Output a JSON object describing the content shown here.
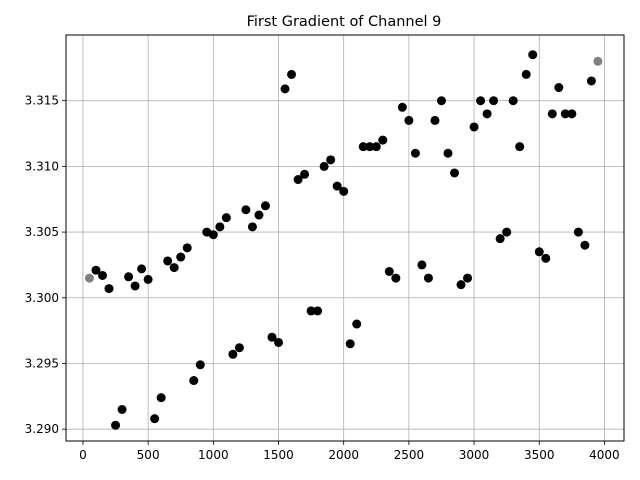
{
  "chart_data": {
    "type": "scatter",
    "title": "First Gradient of Channel 9",
    "xlabel": "",
    "ylabel": "",
    "xlim": [
      -130,
      4150
    ],
    "ylim": [
      3.2891,
      3.32
    ],
    "xticks": [
      0,
      500,
      1000,
      1500,
      2000,
      2500,
      3000,
      3500,
      4000
    ],
    "yticks": [
      3.29,
      3.295,
      3.3,
      3.305,
      3.31,
      3.315
    ],
    "xtick_labels": [
      "0",
      "500",
      "1000",
      "1500",
      "2000",
      "2500",
      "3000",
      "3500",
      "4000"
    ],
    "ytick_labels": [
      "3.290",
      "3.295",
      "3.300",
      "3.305",
      "3.310",
      "3.315"
    ],
    "grid": true,
    "colors": {
      "main": "#000000",
      "endpoint": "#808080",
      "grid": "#b0b0b0"
    },
    "series": [
      {
        "color": "#000000",
        "points": [
          [
            100,
            3.3021
          ],
          [
            150,
            3.3017
          ],
          [
            200,
            3.3007
          ],
          [
            250,
            3.2903
          ],
          [
            300,
            3.2915
          ],
          [
            350,
            3.3016
          ],
          [
            400,
            3.3009
          ],
          [
            450,
            3.3022
          ],
          [
            500,
            3.3014
          ],
          [
            550,
            3.2908
          ],
          [
            600,
            3.2924
          ],
          [
            650,
            3.3028
          ],
          [
            700,
            3.3023
          ],
          [
            750,
            3.3031
          ],
          [
            800,
            3.3038
          ],
          [
            850,
            3.2937
          ],
          [
            900,
            3.2949
          ],
          [
            950,
            3.305
          ],
          [
            1000,
            3.3048
          ],
          [
            1050,
            3.3054
          ],
          [
            1100,
            3.3061
          ],
          [
            1150,
            3.2957
          ],
          [
            1200,
            3.2962
          ],
          [
            1250,
            3.3067
          ],
          [
            1300,
            3.3054
          ],
          [
            1350,
            3.3063
          ],
          [
            1400,
            3.307
          ],
          [
            1450,
            3.297
          ],
          [
            1500,
            3.2966
          ],
          [
            1550,
            3.3159
          ],
          [
            1600,
            3.317
          ],
          [
            1650,
            3.309
          ],
          [
            1700,
            3.3094
          ],
          [
            1750,
            3.299
          ],
          [
            1800,
            3.299
          ],
          [
            1850,
            3.31
          ],
          [
            1900,
            3.3105
          ],
          [
            1950,
            3.3085
          ],
          [
            2000,
            3.3081
          ],
          [
            2050,
            3.2965
          ],
          [
            2100,
            3.298
          ],
          [
            2150,
            3.3115
          ],
          [
            2200,
            3.3115
          ],
          [
            2250,
            3.3115
          ],
          [
            2300,
            3.312
          ],
          [
            2350,
            3.302
          ],
          [
            2400,
            3.3015
          ],
          [
            2450,
            3.3145
          ],
          [
            2500,
            3.3135
          ],
          [
            2550,
            3.311
          ],
          [
            2600,
            3.3025
          ],
          [
            2650,
            3.3015
          ],
          [
            2700,
            3.3135
          ],
          [
            2750,
            3.315
          ],
          [
            2800,
            3.311
          ],
          [
            2850,
            3.3095
          ],
          [
            2900,
            3.301
          ],
          [
            2950,
            3.3015
          ],
          [
            3000,
            3.313
          ],
          [
            3050,
            3.315
          ],
          [
            3100,
            3.314
          ],
          [
            3150,
            3.315
          ],
          [
            3200,
            3.3045
          ],
          [
            3250,
            3.305
          ],
          [
            3300,
            3.315
          ],
          [
            3350,
            3.3115
          ],
          [
            3400,
            3.317
          ],
          [
            3450,
            3.3185
          ],
          [
            3500,
            3.3035
          ],
          [
            3550,
            3.303
          ],
          [
            3600,
            3.314
          ],
          [
            3650,
            3.316
          ],
          [
            3700,
            3.314
          ],
          [
            3750,
            3.314
          ],
          [
            3800,
            3.305
          ],
          [
            3850,
            3.304
          ],
          [
            3900,
            3.3165
          ]
        ]
      },
      {
        "color": "#808080",
        "points": [
          [
            50,
            3.3015
          ],
          [
            3950,
            3.318
          ]
        ]
      }
    ]
  }
}
